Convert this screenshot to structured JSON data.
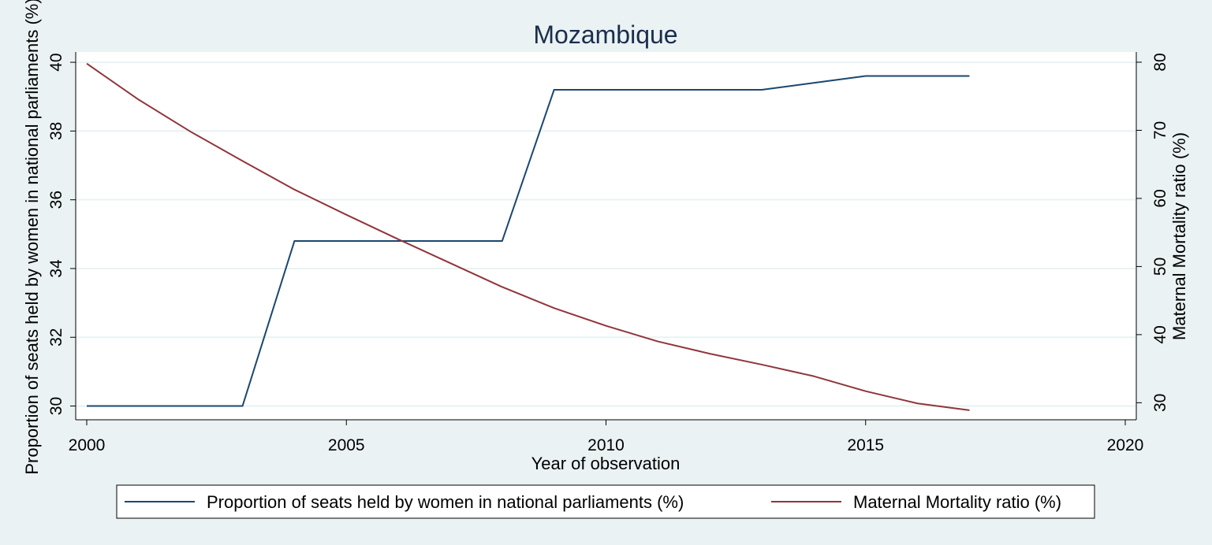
{
  "chart_data": {
    "type": "line",
    "title": "Mozambique",
    "xlabel": "Year of observation",
    "ylabel_left": "Proportion of seats held by women in national parliaments (%)",
    "ylabel_right": "Maternal Mortality ratio (%)",
    "xlim": [
      2000,
      2020
    ],
    "ylim_left": [
      29.6,
      40.3
    ],
    "ylim_right": [
      27.5,
      81.5
    ],
    "x_ticks": [
      2000,
      2005,
      2010,
      2015,
      2020
    ],
    "y_left_ticks": [
      30,
      32,
      34,
      36,
      38,
      40
    ],
    "y_right_ticks": [
      30,
      40,
      50,
      60,
      70,
      80
    ],
    "grid": true,
    "legend_position": "bottom",
    "series": [
      {
        "name": "Proportion of seats held by women in national parliaments (%)",
        "axis": "left",
        "color": "#1a476f",
        "x": [
          2000,
          2001,
          2002,
          2003,
          2004,
          2005,
          2006,
          2007,
          2008,
          2009,
          2010,
          2011,
          2012,
          2013,
          2014,
          2015,
          2016,
          2017
        ],
        "values": [
          30.0,
          30.0,
          30.0,
          30.0,
          34.8,
          34.8,
          34.8,
          34.8,
          34.8,
          39.2,
          39.2,
          39.2,
          39.2,
          39.2,
          39.4,
          39.6,
          39.6,
          39.6
        ]
      },
      {
        "name": "Maternal Mortality ratio (%)",
        "axis": "right",
        "color": "#90353b",
        "x": [
          2000,
          2001,
          2002,
          2003,
          2004,
          2005,
          2006,
          2007,
          2008,
          2009,
          2010,
          2011,
          2012,
          2013,
          2014,
          2015,
          2016,
          2017
        ],
        "values": [
          79.8,
          74.5,
          69.8,
          65.5,
          61.3,
          57.6,
          54.0,
          50.5,
          47.0,
          43.9,
          41.3,
          39.0,
          37.2,
          35.6,
          33.9,
          31.7,
          29.9,
          28.9
        ]
      }
    ]
  }
}
